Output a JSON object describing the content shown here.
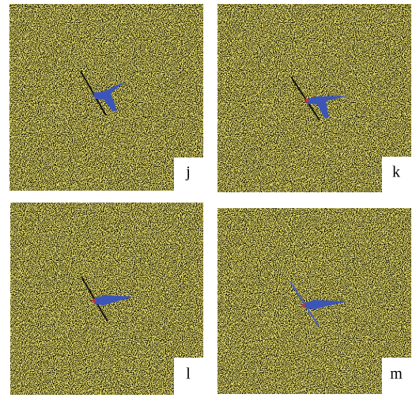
{
  "panels": [
    {
      "label": "j"
    },
    {
      "label": "k"
    },
    {
      "label": "l"
    },
    {
      "label": "m"
    }
  ]
}
